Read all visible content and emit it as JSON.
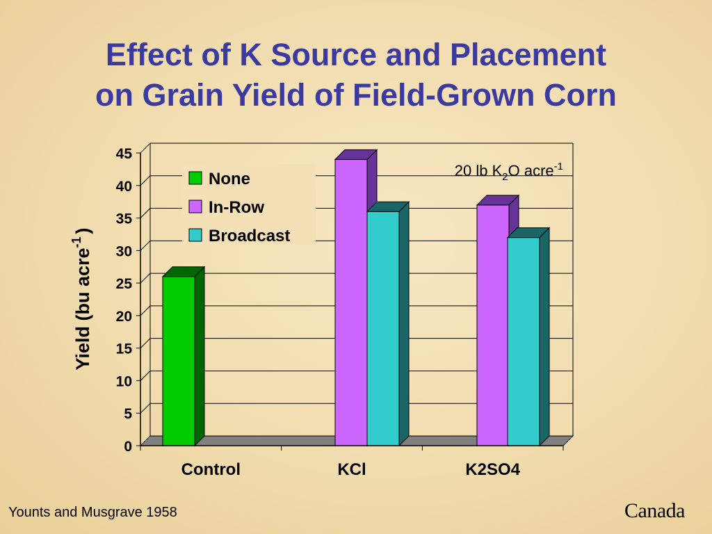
{
  "slide": {
    "title_line1": "Effect of K Source and Placement",
    "title_line2": "on Grain Yield of Field-Grown Corn",
    "footer": "Younts and Musgrave 1958",
    "logo_text": "Canada"
  },
  "chart_data": {
    "type": "bar",
    "categories": [
      "Control",
      "KCl",
      "K2SO4"
    ],
    "series": [
      {
        "name": "None",
        "values": [
          26,
          null,
          null
        ],
        "color": "#00cc00",
        "side_color": "#006600"
      },
      {
        "name": "In-Row",
        "values": [
          null,
          44,
          37
        ],
        "color": "#cc66ff",
        "side_color": "#663399"
      },
      {
        "name": "Broadcast",
        "values": [
          null,
          36,
          32
        ],
        "color": "#33cccc",
        "side_color": "#1a6666"
      }
    ],
    "ylabel": "Yield (bu acre",
    "ylabel_sup": "-1",
    "ylabel_close": ")",
    "ylim": [
      0,
      45
    ],
    "yticks": [
      "0",
      "5",
      "10",
      "15",
      "20",
      "25",
      "30",
      "35",
      "40",
      "45"
    ],
    "annotation": {
      "pre": "20 lb K",
      "sub": "2",
      "mid": "O acre",
      "sup": "-1"
    },
    "legend_position": "top-left",
    "grid": true
  }
}
